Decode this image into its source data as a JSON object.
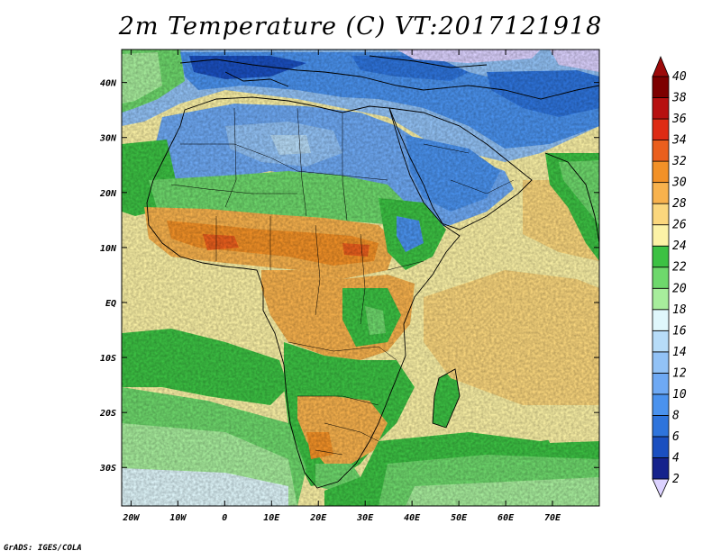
{
  "title": "2m Temperature (C) VT:2017121918",
  "footer": "GrADS: IGES/COLA",
  "map": {
    "lon_range": [
      -22,
      80
    ],
    "lat_range": [
      -37,
      46
    ],
    "lon_ticks": [
      {
        "value": -20,
        "label": "20W"
      },
      {
        "value": -10,
        "label": "10W"
      },
      {
        "value": 0,
        "label": "0"
      },
      {
        "value": 10,
        "label": "10E"
      },
      {
        "value": 20,
        "label": "20E"
      },
      {
        "value": 30,
        "label": "30E"
      },
      {
        "value": 40,
        "label": "40E"
      },
      {
        "value": 50,
        "label": "50E"
      },
      {
        "value": 60,
        "label": "60E"
      },
      {
        "value": 70,
        "label": "70E"
      }
    ],
    "lat_ticks": [
      {
        "value": 40,
        "label": "40N"
      },
      {
        "value": 30,
        "label": "30N"
      },
      {
        "value": 20,
        "label": "20N"
      },
      {
        "value": 10,
        "label": "10N"
      },
      {
        "value": 0,
        "label": "EQ"
      },
      {
        "value": -10,
        "label": "10S"
      },
      {
        "value": -20,
        "label": "20S"
      },
      {
        "value": -30,
        "label": "30S"
      }
    ]
  },
  "colorbar": {
    "levels": [
      {
        "value": 2,
        "label": "2",
        "color": "#dcd2ff"
      },
      {
        "value": 4,
        "label": "4",
        "color": "#15228c"
      },
      {
        "value": 6,
        "label": "6",
        "color": "#1a4fc0"
      },
      {
        "value": 8,
        "label": "8",
        "color": "#2e74dc"
      },
      {
        "value": 10,
        "label": "10",
        "color": "#4a92ee"
      },
      {
        "value": 12,
        "label": "12",
        "color": "#6ea9f4"
      },
      {
        "value": 14,
        "label": "14",
        "color": "#92c2f6"
      },
      {
        "value": 16,
        "label": "16",
        "color": "#b7dcf8"
      },
      {
        "value": 18,
        "label": "18",
        "color": "#e0f7fc"
      },
      {
        "value": 20,
        "label": "20",
        "color": "#a7ed9c"
      },
      {
        "value": 22,
        "label": "22",
        "color": "#6ed86c"
      },
      {
        "value": 24,
        "label": "24",
        "color": "#3cc143"
      },
      {
        "value": 26,
        "label": "26",
        "color": "#fcf2a6"
      },
      {
        "value": 28,
        "label": "28",
        "color": "#fbd77d"
      },
      {
        "value": 30,
        "label": "30",
        "color": "#f8b24d"
      },
      {
        "value": 32,
        "label": "32",
        "color": "#f29127"
      },
      {
        "value": 34,
        "label": "34",
        "color": "#ea5f1d"
      },
      {
        "value": 36,
        "label": "36",
        "color": "#de2b14"
      },
      {
        "value": 38,
        "label": "38",
        "color": "#b71010"
      },
      {
        "value": 40,
        "label": "40",
        "color": "#7d0000"
      }
    ]
  }
}
